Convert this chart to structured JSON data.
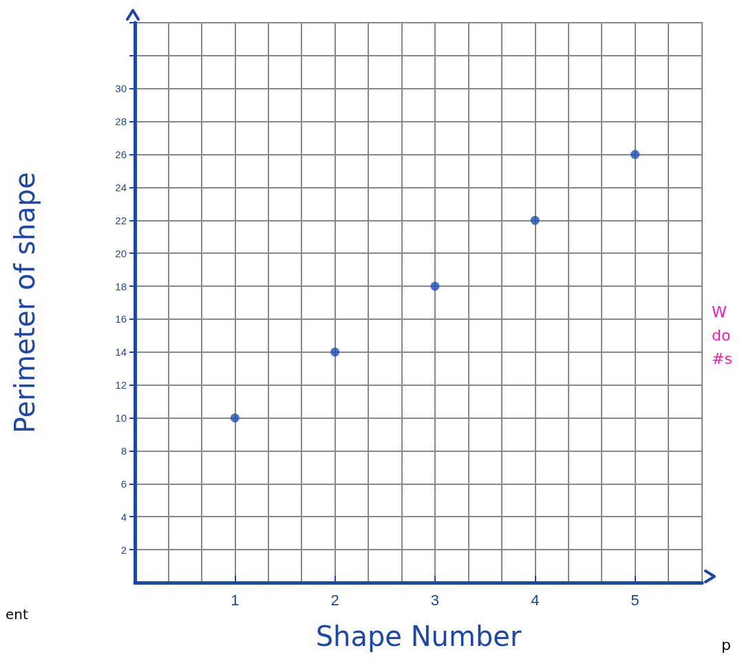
{
  "chart_data": {
    "type": "scatter",
    "xlabel": "Shape Number",
    "ylabel": "Perimeter of shape",
    "x": [
      1,
      2,
      3,
      4,
      5
    ],
    "values": [
      10,
      14,
      18,
      22,
      26
    ],
    "color": "#1d4fb8",
    "xlim": [
      0,
      5.67
    ],
    "xticks": [
      1,
      2,
      3,
      4,
      5
    ],
    "ylim": [
      0,
      34
    ],
    "yticks": [
      2,
      4,
      6,
      8,
      10,
      12,
      14,
      16,
      18,
      20,
      22,
      24,
      26,
      28,
      30,
      {
        "value": 32,
        "label": null
      },
      {
        "value": 34,
        "label": null
      }
    ],
    "grid": true,
    "marker": "circle",
    "annotations": [
      "ent",
      "p",
      "W\ndo\n#s"
    ]
  }
}
